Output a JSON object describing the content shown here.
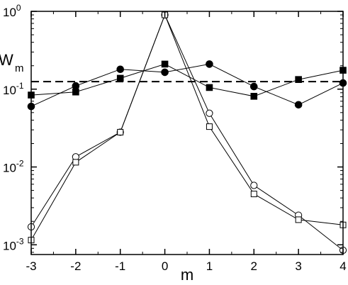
{
  "chart_data": {
    "type": "line",
    "title": "",
    "xlabel": "m",
    "ylabel": "W",
    "ylabel_subscript": "m",
    "xlim": [
      -3,
      4
    ],
    "ylim": [
      0.00075,
      1.0
    ],
    "yscale": "log",
    "x_ticks": [
      -3,
      -2,
      -1,
      0,
      1,
      2,
      3,
      4
    ],
    "x_tick_labels": [
      "-3",
      "-2",
      "-1",
      "0",
      "1",
      "2",
      "3",
      "4"
    ],
    "y_ticks": [
      {
        "value": 0.001,
        "base": "10",
        "exp": "-3"
      },
      {
        "value": 0.01,
        "base": "10",
        "exp": "-2"
      },
      {
        "value": 0.1,
        "base": "10",
        "exp": "-1"
      },
      {
        "value": 1.0,
        "base": "10",
        "exp": "0"
      }
    ],
    "grid": false,
    "legend": "none",
    "reference_line": {
      "value": 0.125,
      "style": "dashed"
    },
    "x": [
      -3,
      -2,
      -1,
      0,
      1,
      2,
      3,
      4
    ],
    "series": [
      {
        "marker": "filled-circle",
        "values": [
          0.06,
          0.11,
          0.18,
          0.165,
          0.21,
          0.108,
          0.063,
          0.12
        ]
      },
      {
        "marker": "filled-square",
        "values": [
          0.084,
          0.092,
          0.138,
          0.21,
          0.105,
          0.081,
          0.133,
          0.175
        ]
      },
      {
        "marker": "open-circle",
        "values": [
          0.0017,
          0.0135,
          0.028,
          0.9,
          0.049,
          0.0058,
          0.0024,
          0.00085
        ]
      },
      {
        "marker": "open-square",
        "values": [
          0.00115,
          0.0115,
          0.028,
          0.9,
          0.033,
          0.0045,
          0.0021,
          0.0018
        ]
      }
    ]
  }
}
